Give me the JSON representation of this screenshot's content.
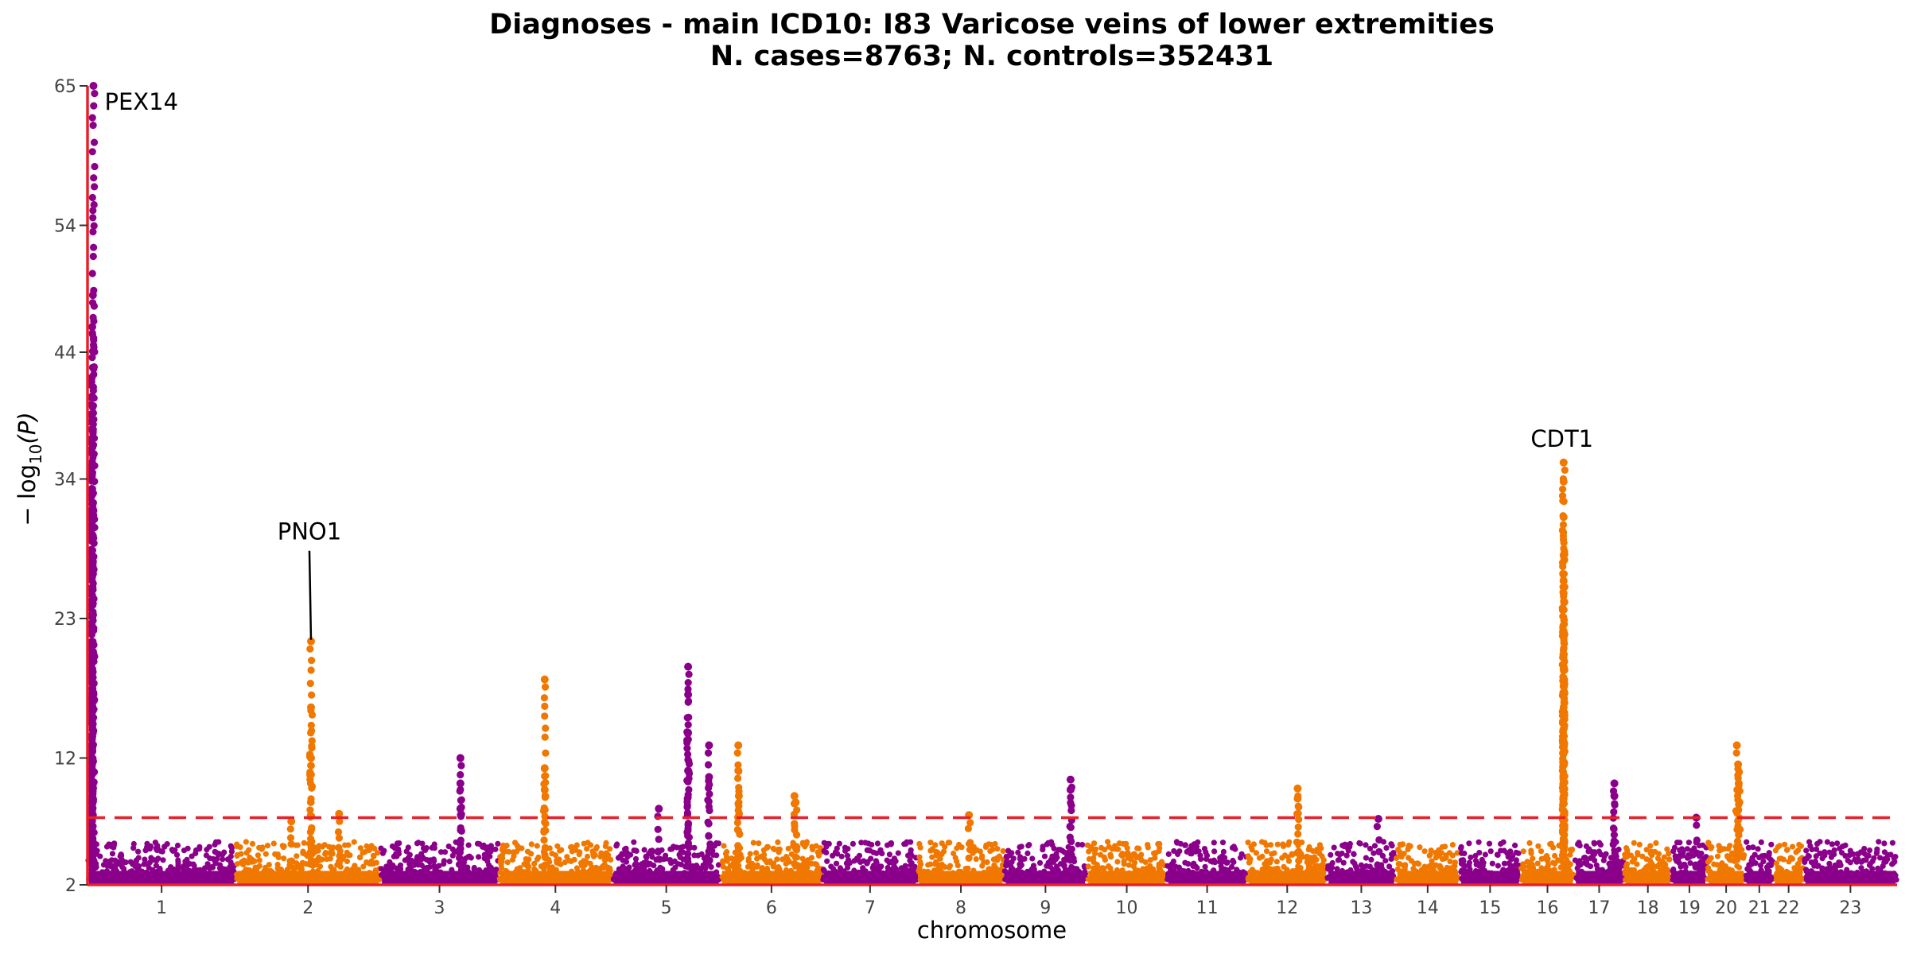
{
  "chart_data": {
    "type": "scatter",
    "subtype": "manhattan",
    "title": "Diagnoses - main ICD10: I83 Varicose veins of lower extremities",
    "subtitle": "N. cases=8763; N. controls=352431",
    "xlabel": "chromosome",
    "ylabel_main": "− log",
    "ylabel_sub": "10",
    "ylabel_var": "(P)",
    "ylim": [
      2,
      65
    ],
    "yticks": [
      2,
      12,
      23,
      34,
      44,
      54,
      65
    ],
    "significance_threshold": 7.3,
    "colors": {
      "odd_chromosome": "#8b008b",
      "even_chromosome": "#f07800",
      "threshold_line": "#e8202a",
      "axis_line": "#e8202a",
      "annotation_line": "#000000"
    },
    "chromosomes": [
      {
        "label": "1",
        "start": 0,
        "end": 248,
        "peaks": [
          {
            "pos": 10,
            "p": 65
          },
          {
            "pos": 9,
            "p": 48.5
          },
          {
            "pos": 8,
            "p": 46
          },
          {
            "pos": 7,
            "p": 42
          },
          {
            "pos": 6,
            "p": 38.5
          },
          {
            "pos": 8,
            "p": 34.5
          },
          {
            "pos": 7,
            "p": 31
          },
          {
            "pos": 9,
            "p": 27.5
          },
          {
            "pos": 7,
            "p": 22.5
          },
          {
            "pos": 8,
            "p": 19
          },
          {
            "pos": 7,
            "p": 15
          },
          {
            "pos": 8,
            "p": 12.5
          },
          {
            "pos": 9,
            "p": 10
          }
        ]
      },
      {
        "label": "2",
        "start": 248,
        "end": 490,
        "peaks": [
          {
            "pos": 374,
            "p": 21.2
          },
          {
            "pos": 374,
            "p": 16
          },
          {
            "pos": 374,
            "p": 12
          },
          {
            "pos": 341,
            "p": 7.0
          },
          {
            "pos": 421,
            "p": 7.6
          }
        ]
      },
      {
        "label": "3",
        "start": 490,
        "end": 688,
        "peaks": [
          {
            "pos": 624,
            "p": 12.0
          },
          {
            "pos": 624,
            "p": 10
          },
          {
            "pos": 624,
            "p": 8
          }
        ]
      },
      {
        "label": "4",
        "start": 688,
        "end": 878,
        "peaks": [
          {
            "pos": 765,
            "p": 18.2
          },
          {
            "pos": 765,
            "p": 11.2
          },
          {
            "pos": 765,
            "p": 9.5
          }
        ]
      },
      {
        "label": "5",
        "start": 878,
        "end": 1059,
        "peaks": [
          {
            "pos": 1005,
            "p": 19.2
          },
          {
            "pos": 1005,
            "p": 17
          },
          {
            "pos": 1005,
            "p": 14
          },
          {
            "pos": 1005,
            "p": 11
          },
          {
            "pos": 1040,
            "p": 13.0
          },
          {
            "pos": 1040,
            "p": 10.5
          },
          {
            "pos": 956,
            "p": 8.0
          }
        ]
      },
      {
        "label": "6",
        "start": 1059,
        "end": 1230,
        "peaks": [
          {
            "pos": 1089,
            "p": 13.0
          },
          {
            "pos": 1089,
            "p": 11
          },
          {
            "pos": 1090,
            "p": 9
          },
          {
            "pos": 1183,
            "p": 9.0
          },
          {
            "pos": 1185,
            "p": 8.5
          }
        ]
      },
      {
        "label": "7",
        "start": 1230,
        "end": 1389,
        "peaks": []
      },
      {
        "label": "8",
        "start": 1389,
        "end": 1534,
        "peaks": [
          {
            "pos": 1475,
            "p": 7.5
          }
        ]
      },
      {
        "label": "9",
        "start": 1534,
        "end": 1672,
        "peaks": [
          {
            "pos": 1645,
            "p": 10.3
          },
          {
            "pos": 1645,
            "p": 9.5
          }
        ]
      },
      {
        "label": "10",
        "start": 1672,
        "end": 1806,
        "peaks": []
      },
      {
        "label": "11",
        "start": 1806,
        "end": 1941,
        "peaks": []
      },
      {
        "label": "12",
        "start": 1941,
        "end": 2074,
        "peaks": [
          {
            "pos": 2025,
            "p": 9.6
          },
          {
            "pos": 2025,
            "p": 8.8
          }
        ]
      },
      {
        "label": "13",
        "start": 2074,
        "end": 2189,
        "peaks": [
          {
            "pos": 2160,
            "p": 7.2
          }
        ]
      },
      {
        "label": "14",
        "start": 2189,
        "end": 2296,
        "peaks": []
      },
      {
        "label": "15",
        "start": 2296,
        "end": 2398,
        "peaks": []
      },
      {
        "label": "16",
        "start": 2398,
        "end": 2488,
        "peaks": [
          {
            "pos": 2470,
            "p": 35.3
          },
          {
            "pos": 2470,
            "p": 33.8
          },
          {
            "pos": 2470,
            "p": 31
          },
          {
            "pos": 2470,
            "p": 28
          },
          {
            "pos": 2470,
            "p": 25
          },
          {
            "pos": 2470,
            "p": 22
          },
          {
            "pos": 2470,
            "p": 19
          },
          {
            "pos": 2470,
            "p": 16
          },
          {
            "pos": 2470,
            "p": 13
          },
          {
            "pos": 2470,
            "p": 10
          }
        ]
      },
      {
        "label": "17",
        "start": 2488,
        "end": 2571,
        "peaks": [
          {
            "pos": 2555,
            "p": 10.0
          },
          {
            "pos": 2555,
            "p": 9
          }
        ]
      },
      {
        "label": "18",
        "start": 2571,
        "end": 2651,
        "peaks": []
      },
      {
        "label": "19",
        "start": 2651,
        "end": 2710,
        "peaks": [
          {
            "pos": 2692,
            "p": 7.3
          }
        ]
      },
      {
        "label": "20",
        "start": 2710,
        "end": 2774,
        "peaks": [
          {
            "pos": 2760,
            "p": 13.0
          },
          {
            "pos": 2762,
            "p": 11.5
          },
          {
            "pos": 2763,
            "p": 10
          },
          {
            "pos": 2764,
            "p": 8.5
          }
        ]
      },
      {
        "label": "21",
        "start": 2774,
        "end": 2821,
        "peaks": []
      },
      {
        "label": "22",
        "start": 2821,
        "end": 2872,
        "peaks": []
      },
      {
        "label": "23",
        "start": 2872,
        "end": 3028,
        "peaks": []
      }
    ],
    "annotations": [
      {
        "label": "PEX14",
        "pos": 10,
        "p": 65,
        "leader": false
      },
      {
        "label": "PNO1",
        "pos": 374,
        "p": 21.2,
        "leader": true
      },
      {
        "label": "CDT1",
        "pos": 2470,
        "p": 35.3,
        "leader": false
      }
    ]
  }
}
